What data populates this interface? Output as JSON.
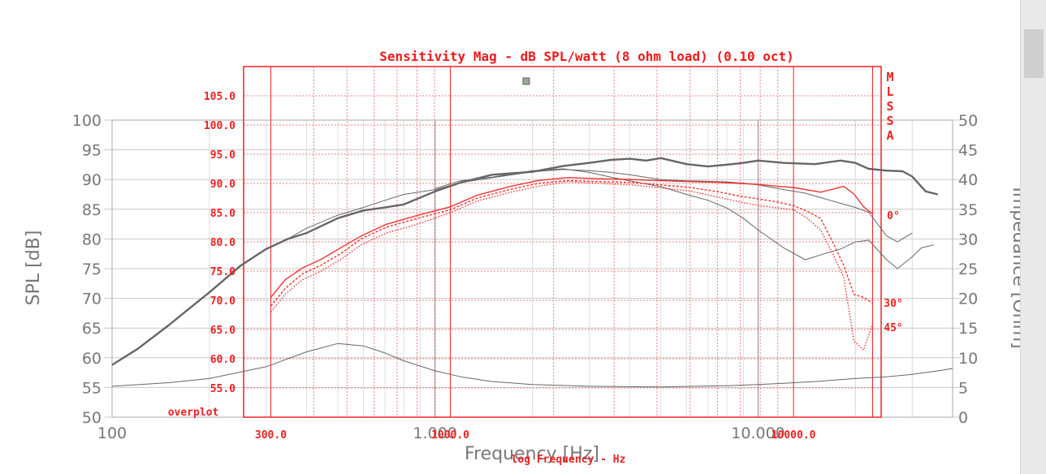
{
  "colors": {
    "gray_axis": "#777777",
    "gray_grid": "#c8c8c8",
    "red_overlay": "#ee2222",
    "red_grid": "#f08080",
    "gray_curve": "#666666",
    "red_curve": "#ee3333"
  },
  "chart_data": [
    {
      "type": "line",
      "title": "",
      "xlabel": "Frequency [Hz]",
      "ylabel": "SPL [dB]",
      "y2label": "Impedance [Ohm]",
      "x_scale": "log",
      "xlim": [
        100,
        40000
      ],
      "ylim": [
        50,
        100
      ],
      "y2lim": [
        0,
        50
      ],
      "grid": true,
      "x_ticks": [
        {
          "value": 100,
          "label": "100"
        },
        {
          "value": 1000,
          "label": "1.000"
        },
        {
          "value": 10000,
          "label": "10.000"
        }
      ],
      "y_ticks": [
        "100",
        "95",
        "90",
        "85",
        "80",
        "75",
        "70",
        "65",
        "60",
        "55",
        "50"
      ],
      "y2_ticks": [
        "50",
        "45",
        "40",
        "35",
        "30",
        "25",
        "20",
        "15",
        "10",
        "5",
        "0"
      ],
      "series": [
        {
          "axis": "SPL",
          "x": [
            100,
            120,
            150,
            180,
            200,
            250,
            300,
            350,
            400,
            500,
            600,
            700,
            800,
            1000,
            1200,
            1500,
            2000,
            2500,
            3000,
            3500,
            4000,
            4500,
            5000,
            6000,
            7000,
            8000,
            9000,
            10000,
            12000,
            15000,
            18000,
            20000,
            22000,
            25000,
            28000,
            30000,
            33000,
            36000
          ],
          "y": [
            58.8,
            61.5,
            65.5,
            69,
            71,
            75.5,
            78.3,
            80,
            81,
            83.5,
            84.8,
            85.3,
            85.8,
            88,
            89.5,
            90.8,
            91.3,
            92.3,
            92.8,
            93.3,
            93.5,
            93.2,
            93.6,
            92.6,
            92.2,
            92.5,
            92.8,
            93.2,
            92.8,
            92.6,
            93.2,
            92.8,
            91.8,
            91.5,
            91.4,
            90.5,
            88,
            87.5
          ]
        },
        {
          "axis": "SPL",
          "x": [
            350,
            400,
            500,
            600,
            700,
            800,
            1000,
            1200,
            1500,
            2000,
            2500,
            3000,
            3500,
            4000,
            5000,
            6000,
            7000,
            8000,
            9000,
            10000,
            12000,
            14000,
            16000,
            18000,
            20000,
            22000,
            25000,
            27000,
            30000
          ],
          "y": [
            80,
            81.8,
            84,
            85.3,
            86.5,
            87.5,
            88.3,
            89.5,
            90.3,
            91.3,
            91.7,
            91.5,
            91.2,
            90.8,
            90,
            89.8,
            89.7,
            89.6,
            89.4,
            89.1,
            88.3,
            87.7,
            86.8,
            86,
            85.3,
            84.5,
            80.5,
            79.5,
            81
          ]
        },
        {
          "axis": "SPL",
          "x": [
            1000,
            1200,
            1500,
            2000,
            2500,
            3000,
            3500,
            4000,
            5000,
            6000,
            7000,
            8000,
            9000,
            10000,
            12000,
            14000,
            16000,
            18000,
            20000,
            22000,
            25000,
            27000,
            30000,
            32000,
            35000
          ],
          "y": [
            88.5,
            89.8,
            90.4,
            91.5,
            91.8,
            91.2,
            90.4,
            89.8,
            88.8,
            87.5,
            86.5,
            85.2,
            83.5,
            81.5,
            78.5,
            76.5,
            77.5,
            78.3,
            79.5,
            79.8,
            76.5,
            75,
            77,
            78.5,
            79
          ]
        },
        {
          "axis": "Impedance",
          "x": [
            100,
            150,
            200,
            300,
            400,
            500,
            600,
            700,
            800,
            1000,
            1200,
            1500,
            2000,
            3000,
            5000,
            8000,
            10000,
            12000,
            15000,
            20000,
            25000,
            30000,
            36000,
            40000
          ],
          "y": [
            5.2,
            5.8,
            6.5,
            8.5,
            11,
            12.4,
            12,
            10.8,
            9.5,
            7.8,
            6.8,
            6,
            5.5,
            5.2,
            5.1,
            5.3,
            5.5,
            5.7,
            6,
            6.5,
            6.8,
            7.2,
            7.8,
            8.2
          ]
        }
      ]
    },
    {
      "type": "line",
      "title": "Sensitivity Mag - dB SPL/watt (8 ohm load) (0.10 oct)",
      "xlabel": "log Frequency - Hz",
      "ylabel": "",
      "x_scale": "log",
      "xlim": [
        250,
        18000
      ],
      "ylim": [
        50,
        110
      ],
      "grid": true,
      "x_ticks": [
        {
          "value": 300,
          "label": "300.0"
        },
        {
          "value": 1000,
          "label": "1000.0"
        },
        {
          "value": 10000,
          "label": "10000.0"
        }
      ],
      "y_ticks": [
        "105.0",
        "100.0",
        "95.0",
        "90.0",
        "85.0",
        "80.0",
        "75.0",
        "70.0",
        "65.0",
        "60.0",
        "55.0"
      ],
      "overplot_label": "overplot",
      "side_letters": [
        "M",
        "L",
        "S",
        "S",
        "A"
      ],
      "angle_labels": [
        "0°",
        "30°",
        "45°"
      ],
      "series": [
        {
          "name": "0°",
          "x": [
            300,
            330,
            370,
            420,
            480,
            550,
            650,
            800,
            1000,
            1200,
            1500,
            1800,
            2200,
            2700,
            3300,
            4000,
            5000,
            6000,
            7000,
            8000,
            9000,
            10000,
            12000,
            14000,
            15000,
            16000,
            17000
          ],
          "y": [
            70.5,
            73.5,
            75.5,
            77,
            79,
            81,
            83,
            84.5,
            86,
            88,
            89.5,
            90.5,
            91,
            90.8,
            90.7,
            90.5,
            90.3,
            90.2,
            90,
            89.8,
            89.5,
            89.3,
            88.5,
            89.5,
            88.2,
            86,
            84.8
          ]
        },
        {
          "name": "30°",
          "x": [
            300,
            330,
            370,
            420,
            480,
            550,
            650,
            800,
            1000,
            1200,
            1500,
            1800,
            2200,
            2700,
            3300,
            4000,
            5000,
            6000,
            7000,
            8000,
            9000,
            10000,
            11000,
            12000,
            13000,
            14000,
            15000,
            16000,
            17000
          ],
          "y": [
            69,
            72,
            74.5,
            76,
            78,
            80.5,
            82.5,
            84,
            85.5,
            87.5,
            89,
            90,
            90.5,
            90.3,
            90.2,
            89.8,
            89.3,
            88.6,
            87.8,
            87.3,
            86.8,
            86.2,
            85.2,
            84,
            80,
            76,
            71,
            70.5,
            69.5
          ]
        },
        {
          "name": "45°",
          "x": [
            300,
            330,
            370,
            420,
            480,
            550,
            650,
            800,
            1000,
            1200,
            1500,
            1800,
            2200,
            2700,
            3300,
            4000,
            5000,
            6000,
            7000,
            8000,
            9000,
            10000,
            11000,
            12000,
            13000,
            14000,
            15000,
            16000,
            17000
          ],
          "y": [
            68,
            71,
            73.5,
            75,
            77,
            79.5,
            81.5,
            83,
            85,
            87,
            88.5,
            89.5,
            90.3,
            90,
            89.8,
            89.3,
            88.7,
            87.7,
            86.8,
            86.2,
            85.8,
            85.5,
            84,
            82,
            78,
            74,
            63,
            61.5,
            66
          ]
        }
      ]
    }
  ]
}
